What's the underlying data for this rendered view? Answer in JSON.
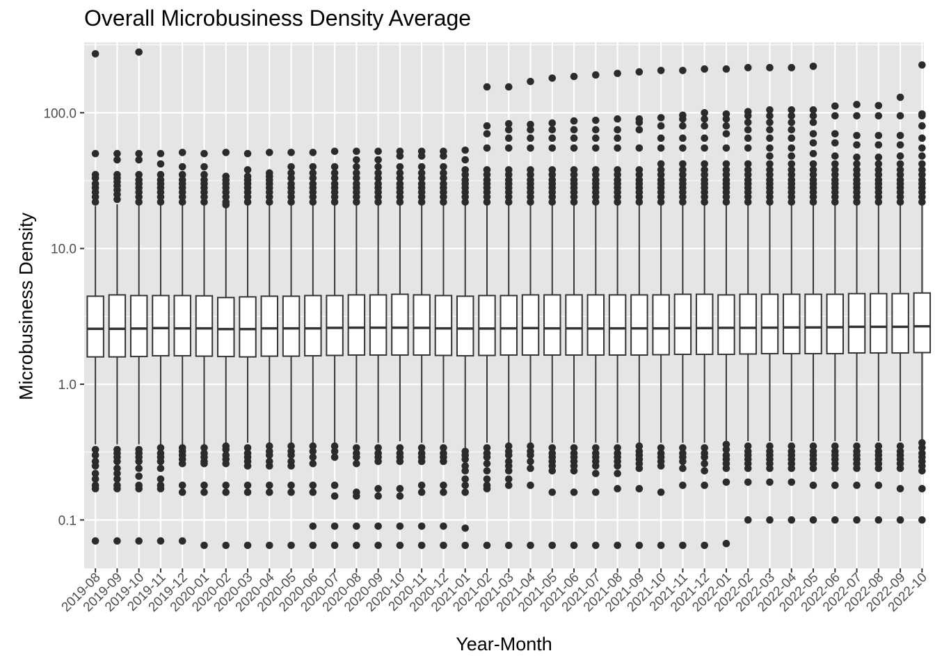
{
  "chart_data": {
    "type": "boxplot",
    "title": "Overall Microbusiness Density Average",
    "xlabel": "Year-Month",
    "ylabel": "Microbusiness Density",
    "y_scale": "log10",
    "ylim": [
      0.044,
      330
    ],
    "y_ticks": [
      "0.1",
      "1.0",
      "10.0",
      "100.0"
    ],
    "grid": true,
    "colors": {
      "panel": "#e5e5e5",
      "grid": "#ffffff",
      "box_line": "#333333",
      "box_fill": "#ffffff",
      "outlier": "#2b2b2b"
    },
    "categories": [
      "2019-08",
      "2019-09",
      "2019-10",
      "2019-11",
      "2019-12",
      "2020-01",
      "2020-02",
      "2020-03",
      "2020-04",
      "2020-05",
      "2020-06",
      "2020-07",
      "2020-08",
      "2020-09",
      "2020-10",
      "2020-11",
      "2020-12",
      "2021-01",
      "2021-02",
      "2021-03",
      "2021-04",
      "2021-05",
      "2021-06",
      "2021-07",
      "2021-08",
      "2021-09",
      "2021-10",
      "2021-11",
      "2021-12",
      "2022-01",
      "2022-02",
      "2022-03",
      "2022-04",
      "2022-05",
      "2022-06",
      "2022-07",
      "2022-08",
      "2022-09",
      "2022-10"
    ],
    "boxes": [
      {
        "q1": 1.59,
        "median": 2.56,
        "q3": 4.45,
        "whisker_low": 0.36,
        "whisker_high": 20.6,
        "outliers": [
          272,
          50,
          35,
          33,
          30,
          28,
          26,
          24,
          22,
          0.33,
          0.3,
          0.27,
          0.25,
          0.22,
          0.2,
          0.18,
          0.17,
          0.07
        ]
      },
      {
        "q1": 1.59,
        "median": 2.56,
        "q3": 4.55,
        "whisker_low": 0.36,
        "whisker_high": 21.2,
        "outliers": [
          50,
          45,
          35,
          33,
          31,
          29,
          27,
          25,
          23,
          0.33,
          0.31,
          0.29,
          0.27,
          0.24,
          0.22,
          0.2,
          0.18,
          0.17,
          0.07
        ]
      },
      {
        "q1": 1.6,
        "median": 2.57,
        "q3": 4.5,
        "whisker_low": 0.36,
        "whisker_high": 21.0,
        "outliers": [
          280,
          50,
          45,
          35,
          32,
          30,
          28,
          26,
          24,
          22,
          0.33,
          0.31,
          0.29,
          0.27,
          0.24,
          0.21,
          0.18,
          0.17,
          0.07
        ]
      },
      {
        "q1": 1.62,
        "median": 2.59,
        "q3": 4.5,
        "whisker_low": 0.36,
        "whisker_high": 21.0,
        "outliers": [
          50,
          42,
          35,
          32,
          30,
          28,
          26,
          24,
          22,
          0.34,
          0.31,
          0.29,
          0.27,
          0.24,
          0.2,
          0.18,
          0.17,
          0.07
        ]
      },
      {
        "q1": 1.62,
        "median": 2.58,
        "q3": 4.5,
        "whisker_low": 0.36,
        "whisker_high": 21.0,
        "outliers": [
          51,
          40,
          35,
          32,
          30,
          28,
          26,
          24,
          22,
          0.34,
          0.32,
          0.3,
          0.28,
          0.26,
          0.18,
          0.16,
          0.07
        ]
      },
      {
        "q1": 1.61,
        "median": 2.58,
        "q3": 4.48,
        "whisker_low": 0.36,
        "whisker_high": 21.0,
        "outliers": [
          50,
          40,
          35,
          32,
          30,
          28,
          26,
          24,
          22,
          0.34,
          0.31,
          0.29,
          0.27,
          0.26,
          0.18,
          0.16,
          0.065
        ]
      },
      {
        "q1": 1.6,
        "median": 2.55,
        "q3": 4.35,
        "whisker_low": 0.37,
        "whisker_high": 20.0,
        "outliers": [
          51,
          34,
          32,
          30,
          28,
          26,
          24,
          22,
          21,
          0.35,
          0.33,
          0.3,
          0.28,
          0.26,
          0.18,
          0.16,
          0.065
        ]
      },
      {
        "q1": 1.59,
        "median": 2.55,
        "q3": 4.4,
        "whisker_low": 0.37,
        "whisker_high": 20.8,
        "outliers": [
          50,
          38,
          34,
          32,
          30,
          28,
          26,
          24,
          22,
          0.34,
          0.31,
          0.29,
          0.27,
          0.25,
          0.18,
          0.16,
          0.065
        ]
      },
      {
        "q1": 1.61,
        "median": 2.58,
        "q3": 4.45,
        "whisker_low": 0.37,
        "whisker_high": 21.5,
        "outliers": [
          51,
          36,
          34,
          32,
          30,
          28,
          26,
          24,
          22,
          0.35,
          0.32,
          0.3,
          0.27,
          0.25,
          0.18,
          0.16,
          0.065
        ]
      },
      {
        "q1": 1.61,
        "median": 2.58,
        "q3": 4.45,
        "whisker_low": 0.37,
        "whisker_high": 21.5,
        "outliers": [
          51,
          40,
          36,
          33,
          30,
          28,
          26,
          24,
          22,
          0.35,
          0.32,
          0.3,
          0.27,
          0.25,
          0.18,
          0.16,
          0.065
        ]
      },
      {
        "q1": 1.62,
        "median": 2.58,
        "q3": 4.5,
        "whisker_low": 0.37,
        "whisker_high": 21.5,
        "outliers": [
          51,
          40,
          36,
          33,
          30,
          28,
          26,
          24,
          22,
          0.35,
          0.32,
          0.29,
          0.26,
          0.18,
          0.16,
          0.09,
          0.065
        ]
      },
      {
        "q1": 1.63,
        "median": 2.6,
        "q3": 4.5,
        "whisker_low": 0.37,
        "whisker_high": 21.0,
        "outliers": [
          52,
          40,
          36,
          33,
          30,
          28,
          26,
          24,
          22,
          0.35,
          0.32,
          0.29,
          0.18,
          0.15,
          0.09,
          0.065
        ]
      },
      {
        "q1": 1.64,
        "median": 2.61,
        "q3": 4.55,
        "whisker_low": 0.37,
        "whisker_high": 21.5,
        "outliers": [
          52,
          45,
          40,
          36,
          33,
          30,
          28,
          26,
          24,
          22,
          0.34,
          0.31,
          0.29,
          0.26,
          0.16,
          0.15,
          0.09,
          0.065
        ]
      },
      {
        "q1": 1.64,
        "median": 2.61,
        "q3": 4.55,
        "whisker_low": 0.37,
        "whisker_high": 21.5,
        "outliers": [
          52,
          45,
          40,
          36,
          33,
          30,
          28,
          26,
          24,
          22,
          0.34,
          0.31,
          0.29,
          0.27,
          0.17,
          0.15,
          0.09,
          0.065
        ]
      },
      {
        "q1": 1.64,
        "median": 2.61,
        "q3": 4.6,
        "whisker_low": 0.38,
        "whisker_high": 21.5,
        "outliers": [
          52,
          48,
          40,
          36,
          33,
          30,
          28,
          26,
          24,
          22,
          0.34,
          0.31,
          0.29,
          0.27,
          0.17,
          0.15,
          0.09,
          0.065
        ]
      },
      {
        "q1": 1.64,
        "median": 2.6,
        "q3": 4.55,
        "whisker_low": 0.37,
        "whisker_high": 21.5,
        "outliers": [
          52,
          48,
          40,
          36,
          33,
          30,
          28,
          26,
          24,
          22,
          0.34,
          0.31,
          0.29,
          0.27,
          0.18,
          0.16,
          0.09,
          0.065
        ]
      },
      {
        "q1": 1.63,
        "median": 2.58,
        "q3": 4.5,
        "whisker_low": 0.37,
        "whisker_high": 21.5,
        "outliers": [
          52,
          48,
          40,
          36,
          33,
          30,
          28,
          26,
          24,
          22,
          0.34,
          0.31,
          0.29,
          0.27,
          0.18,
          0.16,
          0.09,
          0.065
        ]
      },
      {
        "q1": 1.62,
        "median": 2.57,
        "q3": 4.45,
        "whisker_low": 0.34,
        "whisker_high": 21.5,
        "outliers": [
          53,
          45,
          38,
          35,
          32,
          30,
          28,
          26,
          24,
          22,
          0.32,
          0.3,
          0.28,
          0.25,
          0.23,
          0.2,
          0.18,
          0.16,
          0.087,
          0.065
        ]
      },
      {
        "q1": 1.63,
        "median": 2.57,
        "q3": 4.5,
        "whisker_low": 0.37,
        "whisker_high": 21.5,
        "outliers": [
          155,
          80,
          70,
          55,
          38,
          35,
          32,
          30,
          28,
          26,
          24,
          22,
          0.34,
          0.31,
          0.29,
          0.26,
          0.23,
          0.2,
          0.18,
          0.17,
          0.065
        ]
      },
      {
        "q1": 1.64,
        "median": 2.58,
        "q3": 4.5,
        "whisker_low": 0.37,
        "whisker_high": 21.5,
        "outliers": [
          155,
          83,
          75,
          65,
          55,
          38,
          35,
          32,
          30,
          28,
          26,
          24,
          22,
          0.35,
          0.32,
          0.3,
          0.27,
          0.25,
          0.23,
          0.2,
          0.18,
          0.065
        ]
      },
      {
        "q1": 1.64,
        "median": 2.59,
        "q3": 4.55,
        "whisker_low": 0.37,
        "whisker_high": 21.5,
        "outliers": [
          170,
          82,
          75,
          65,
          55,
          38,
          35,
          32,
          30,
          28,
          26,
          24,
          22,
          0.35,
          0.32,
          0.3,
          0.27,
          0.24,
          0.18,
          0.065
        ]
      },
      {
        "q1": 1.64,
        "median": 2.58,
        "q3": 4.55,
        "whisker_low": 0.37,
        "whisker_high": 21.5,
        "outliers": [
          180,
          84,
          75,
          65,
          55,
          38,
          35,
          32,
          30,
          28,
          26,
          24,
          22,
          0.34,
          0.31,
          0.29,
          0.27,
          0.25,
          0.23,
          0.16,
          0.065
        ]
      },
      {
        "q1": 1.64,
        "median": 2.58,
        "q3": 4.55,
        "whisker_low": 0.37,
        "whisker_high": 21.5,
        "outliers": [
          185,
          87,
          75,
          65,
          55,
          38,
          35,
          32,
          30,
          28,
          26,
          24,
          22,
          0.34,
          0.31,
          0.29,
          0.27,
          0.25,
          0.23,
          0.16,
          0.065
        ]
      },
      {
        "q1": 1.64,
        "median": 2.57,
        "q3": 4.55,
        "whisker_low": 0.37,
        "whisker_high": 21.5,
        "outliers": [
          190,
          88,
          75,
          65,
          55,
          38,
          35,
          32,
          30,
          28,
          26,
          24,
          22,
          0.34,
          0.31,
          0.29,
          0.27,
          0.25,
          0.22,
          0.16,
          0.065
        ]
      },
      {
        "q1": 1.64,
        "median": 2.58,
        "q3": 4.55,
        "whisker_low": 0.37,
        "whisker_high": 21.5,
        "outliers": [
          195,
          90,
          75,
          65,
          55,
          38,
          35,
          32,
          30,
          28,
          26,
          24,
          22,
          0.34,
          0.31,
          0.29,
          0.27,
          0.25,
          0.22,
          0.17,
          0.065
        ]
      },
      {
        "q1": 1.64,
        "median": 2.58,
        "q3": 4.55,
        "whisker_low": 0.37,
        "whisker_high": 21.5,
        "outliers": [
          200,
          90,
          85,
          75,
          55,
          38,
          35,
          32,
          30,
          28,
          26,
          24,
          22,
          0.35,
          0.32,
          0.3,
          0.28,
          0.26,
          0.24,
          0.17,
          0.065
        ]
      },
      {
        "q1": 1.65,
        "median": 2.58,
        "q3": 4.55,
        "whisker_low": 0.37,
        "whisker_high": 21.5,
        "outliers": [
          205,
          92,
          80,
          65,
          55,
          42,
          38,
          35,
          32,
          30,
          28,
          26,
          24,
          22,
          0.34,
          0.31,
          0.29,
          0.27,
          0.25,
          0.16,
          0.065
        ]
      },
      {
        "q1": 1.66,
        "median": 2.59,
        "q3": 4.6,
        "whisker_low": 0.37,
        "whisker_high": 21.5,
        "outliers": [
          205,
          96,
          90,
          80,
          65,
          55,
          42,
          38,
          35,
          32,
          30,
          28,
          26,
          24,
          22,
          0.34,
          0.31,
          0.29,
          0.27,
          0.24,
          0.18,
          0.065
        ]
      },
      {
        "q1": 1.66,
        "median": 2.59,
        "q3": 4.6,
        "whisker_low": 0.37,
        "whisker_high": 21.5,
        "outliers": [
          210,
          100,
          90,
          80,
          65,
          55,
          42,
          38,
          35,
          32,
          30,
          28,
          26,
          24,
          22,
          0.34,
          0.31,
          0.29,
          0.26,
          0.23,
          0.18,
          0.065
        ]
      },
      {
        "q1": 1.66,
        "median": 2.6,
        "q3": 4.55,
        "whisker_low": 0.38,
        "whisker_high": 21.5,
        "outliers": [
          210,
          98,
          90,
          80,
          70,
          55,
          42,
          38,
          35,
          32,
          30,
          28,
          26,
          24,
          22,
          0.36,
          0.33,
          0.3,
          0.28,
          0.26,
          0.24,
          0.19,
          0.067
        ]
      },
      {
        "q1": 1.67,
        "median": 2.6,
        "q3": 4.6,
        "whisker_low": 0.38,
        "whisker_high": 21.5,
        "outliers": [
          215,
          102,
          95,
          85,
          75,
          65,
          55,
          42,
          38,
          35,
          32,
          30,
          28,
          26,
          24,
          22,
          0.35,
          0.32,
          0.3,
          0.28,
          0.26,
          0.24,
          0.19,
          0.1
        ]
      },
      {
        "q1": 1.68,
        "median": 2.61,
        "q3": 4.6,
        "whisker_low": 0.38,
        "whisker_high": 21.5,
        "outliers": [
          215,
          105,
          95,
          85,
          75,
          65,
          55,
          48,
          42,
          38,
          35,
          32,
          30,
          28,
          26,
          24,
          22,
          0.35,
          0.32,
          0.3,
          0.28,
          0.26,
          0.24,
          0.19,
          0.1
        ]
      },
      {
        "q1": 1.68,
        "median": 2.62,
        "q3": 4.6,
        "whisker_low": 0.38,
        "whisker_high": 21.5,
        "outliers": [
          215,
          105,
          95,
          85,
          75,
          65,
          55,
          48,
          42,
          38,
          35,
          32,
          30,
          28,
          26,
          24,
          22,
          0.35,
          0.32,
          0.3,
          0.28,
          0.26,
          0.24,
          0.19,
          0.1
        ]
      },
      {
        "q1": 1.68,
        "median": 2.62,
        "q3": 4.6,
        "whisker_low": 0.38,
        "whisker_high": 21.5,
        "outliers": [
          220,
          105,
          95,
          85,
          70,
          60,
          50,
          42,
          38,
          35,
          32,
          30,
          28,
          26,
          24,
          22,
          0.35,
          0.32,
          0.3,
          0.28,
          0.26,
          0.24,
          0.18,
          0.1
        ]
      },
      {
        "q1": 1.68,
        "median": 2.63,
        "q3": 4.6,
        "whisker_low": 0.38,
        "whisker_high": 21.5,
        "outliers": [
          112,
          95,
          70,
          60,
          48,
          42,
          38,
          35,
          32,
          30,
          28,
          26,
          24,
          22,
          0.35,
          0.32,
          0.3,
          0.28,
          0.26,
          0.24,
          0.18,
          0.1
        ]
      },
      {
        "q1": 1.7,
        "median": 2.65,
        "q3": 4.65,
        "whisker_low": 0.38,
        "whisker_high": 21.5,
        "outliers": [
          115,
          95,
          68,
          58,
          47,
          42,
          38,
          35,
          32,
          30,
          28,
          26,
          24,
          22,
          0.35,
          0.32,
          0.3,
          0.28,
          0.26,
          0.24,
          0.18,
          0.1
        ]
      },
      {
        "q1": 1.7,
        "median": 2.65,
        "q3": 4.65,
        "whisker_low": 0.38,
        "whisker_high": 21.5,
        "outliers": [
          113,
          95,
          68,
          58,
          47,
          42,
          38,
          35,
          32,
          30,
          28,
          26,
          24,
          22,
          0.35,
          0.32,
          0.3,
          0.28,
          0.26,
          0.24,
          0.18,
          0.1
        ]
      },
      {
        "q1": 1.7,
        "median": 2.65,
        "q3": 4.65,
        "whisker_low": 0.38,
        "whisker_high": 21.5,
        "outliers": [
          130,
          95,
          68,
          58,
          48,
          42,
          38,
          35,
          32,
          30,
          28,
          26,
          24,
          22,
          0.35,
          0.32,
          0.3,
          0.28,
          0.26,
          0.24,
          0.17,
          0.1
        ]
      },
      {
        "q1": 1.71,
        "median": 2.67,
        "q3": 4.7,
        "whisker_low": 0.39,
        "whisker_high": 21.5,
        "outliers": [
          225,
          98,
          95,
          80,
          65,
          55,
          48,
          42,
          38,
          35,
          32,
          30,
          28,
          26,
          24,
          22,
          0.37,
          0.34,
          0.31,
          0.29,
          0.27,
          0.25,
          0.23,
          0.17,
          0.1
        ]
      }
    ]
  }
}
